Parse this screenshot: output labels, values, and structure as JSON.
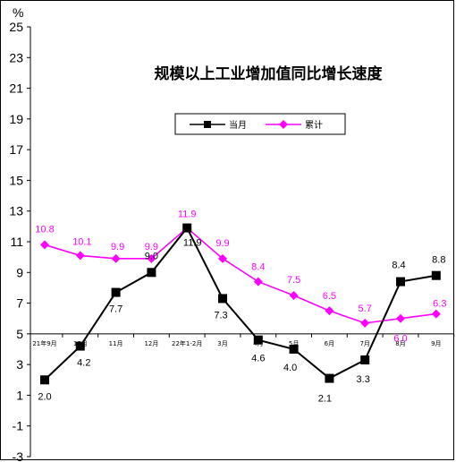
{
  "chart_data": {
    "type": "line",
    "title": "规模以上工业增加值同比增长速度",
    "unit_label": "%",
    "ylim": [
      -3,
      25
    ],
    "yticks": [
      -3,
      -1,
      1,
      3,
      5,
      7,
      9,
      11,
      13,
      15,
      17,
      19,
      21,
      23,
      25
    ],
    "x_axis_at": 5,
    "categories": [
      "21年9月",
      "10月",
      "11月",
      "12月",
      "22年1-2月",
      "3月",
      "4月",
      "5月",
      "6月",
      "7月",
      "8月",
      "9月"
    ],
    "series": [
      {
        "name": "当月",
        "color": "#000000",
        "marker": "square",
        "values": [
          2.0,
          4.2,
          7.7,
          9.0,
          11.9,
          7.3,
          4.6,
          4.0,
          2.1,
          3.3,
          8.4,
          8.8
        ],
        "labels": [
          "2.0",
          "4.2",
          "7.7",
          "9.0",
          "11.9",
          "7.3",
          "4.6",
          "4.0",
          "2.1",
          "3.3",
          "8.4",
          "8.8"
        ]
      },
      {
        "name": "累计",
        "color": "#ff00ff",
        "marker": "diamond",
        "values": [
          10.8,
          10.1,
          9.9,
          9.9,
          11.9,
          9.9,
          8.4,
          7.5,
          6.5,
          5.7,
          6.0,
          6.3
        ],
        "labels": [
          "10.8",
          "10.1",
          "9.9",
          "9.9",
          "11.9",
          "9.9",
          "8.4",
          "7.5",
          "6.5",
          "5.7",
          "6.0",
          "6.3"
        ]
      }
    ],
    "legend_position": "top-center",
    "grid": false
  }
}
